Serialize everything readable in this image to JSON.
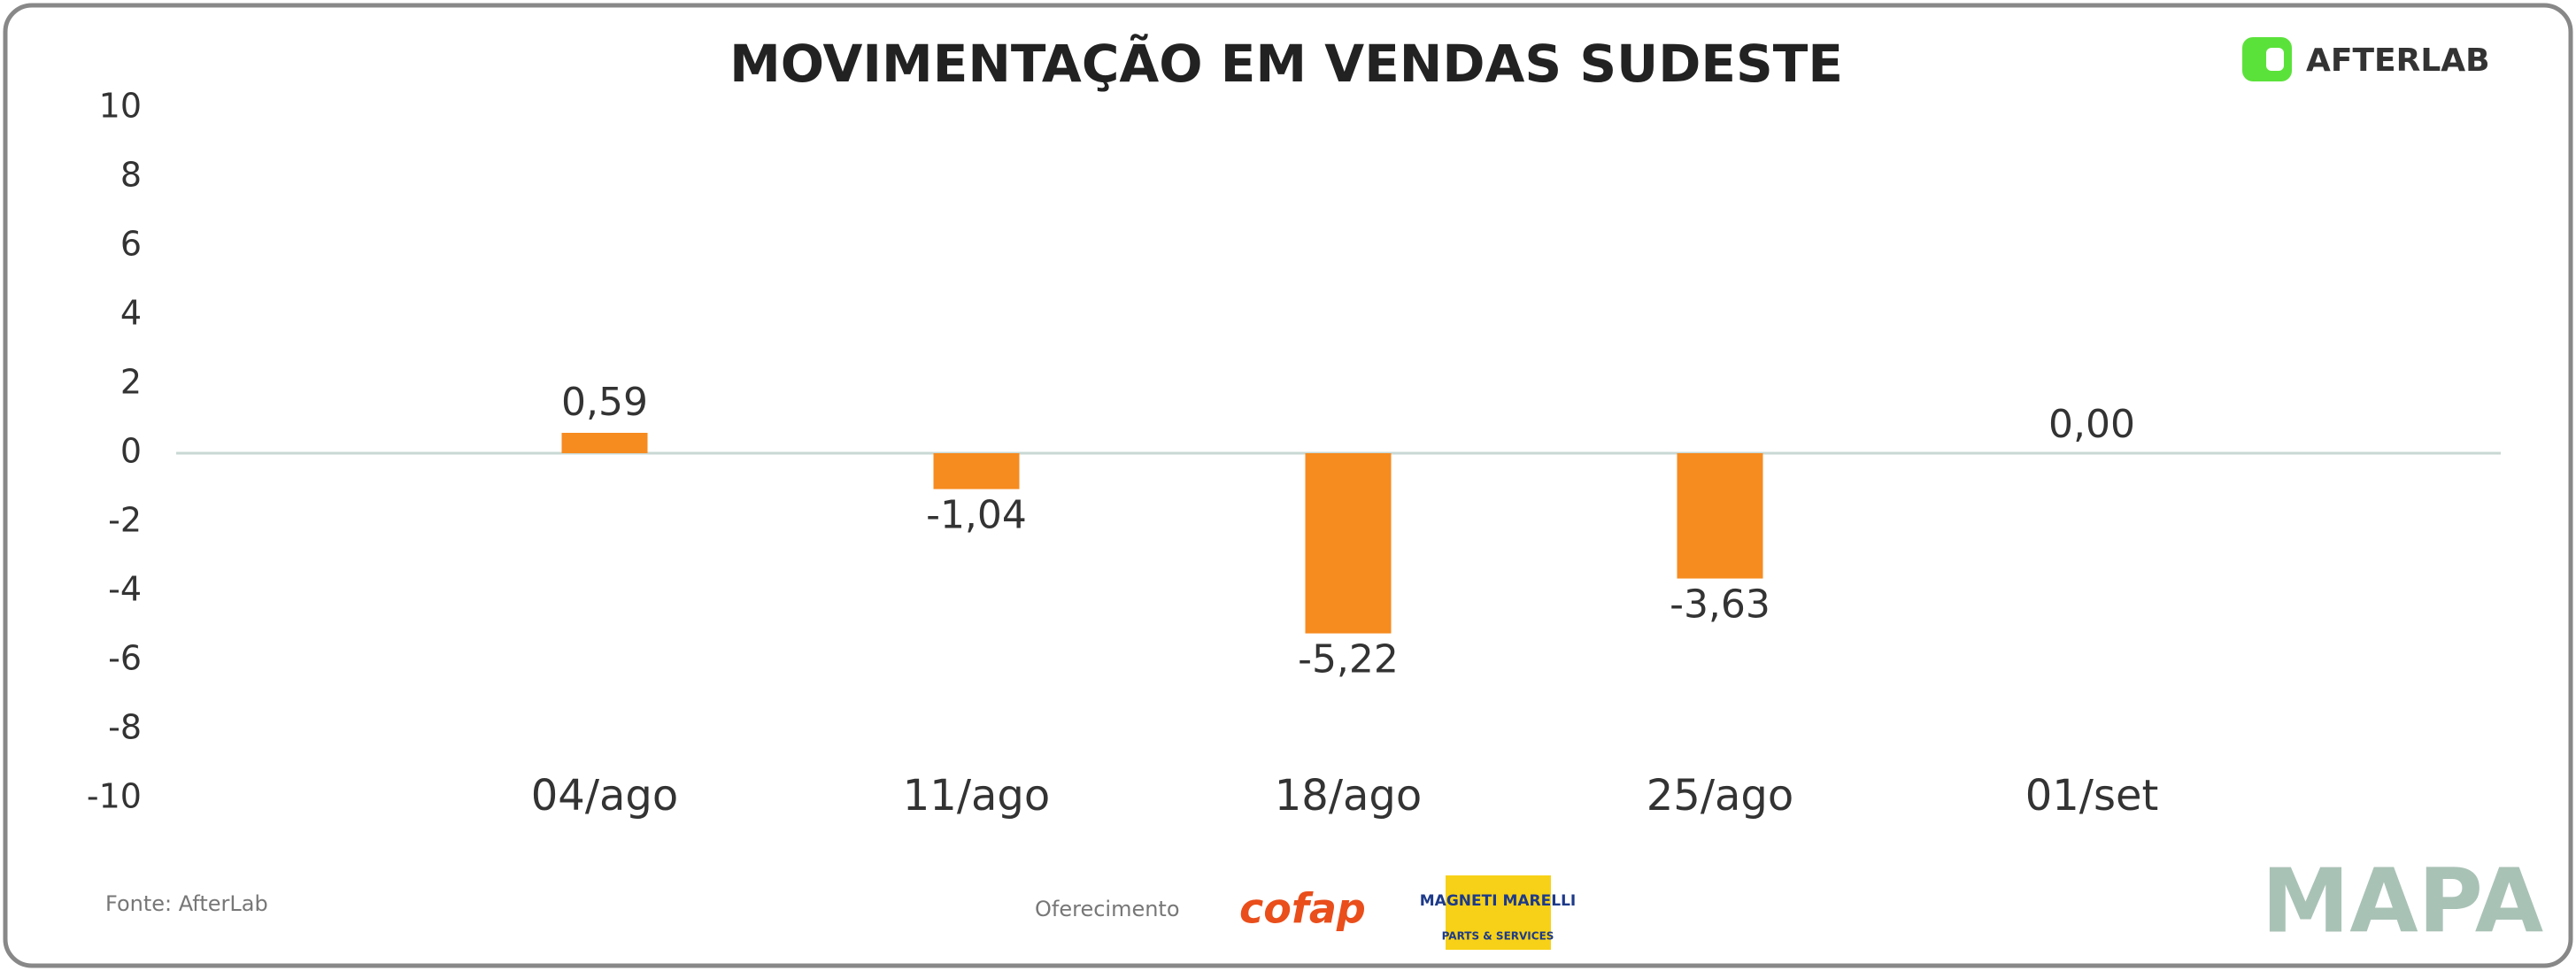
{
  "chart_data": {
    "type": "bar",
    "title": "MOVIMENTAÇÃO EM VENDAS SUDESTE",
    "categories": [
      "04/ago",
      "11/ago",
      "18/ago",
      "25/ago",
      "01/set"
    ],
    "values": [
      0.59,
      -1.04,
      -5.22,
      -3.63,
      0.0
    ],
    "value_labels": [
      "0,59",
      "-1,04",
      "-5,22",
      "-3,63",
      "0,00"
    ],
    "color": "#f68b1f",
    "ylim": [
      -10,
      10
    ],
    "yticks": [
      -10,
      -8,
      -6,
      -4,
      -2,
      0,
      2,
      4,
      6,
      8,
      10
    ]
  },
  "footer": {
    "source": "Fonte: AfterLab",
    "sponsor_label": "Oferecimento",
    "sponsors": [
      "cofap",
      "MAGNETI MARELLI",
      "PARTS & SERVICES"
    ]
  },
  "logos": {
    "brand": "AFTERLAB",
    "mapa": "MAPA"
  }
}
